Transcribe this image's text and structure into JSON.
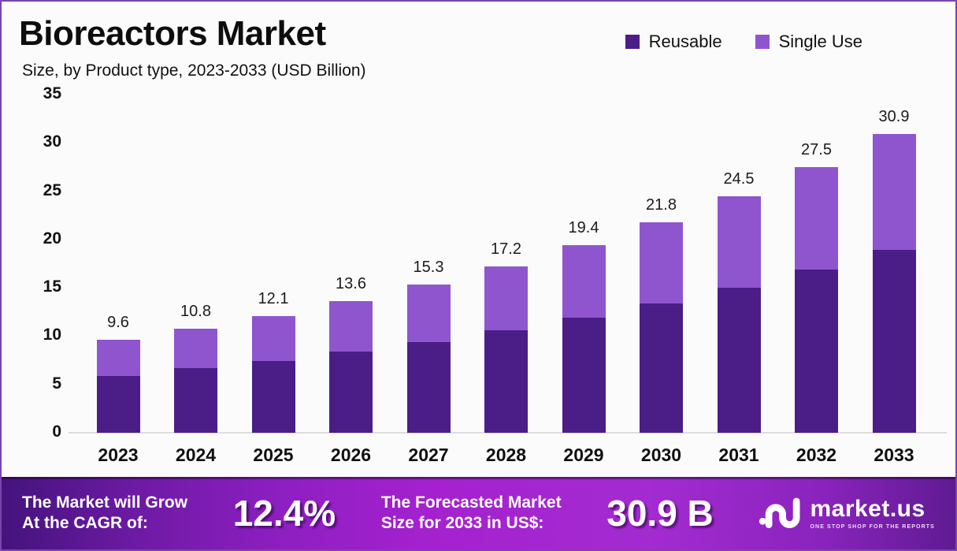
{
  "header": {
    "title": "Bioreactors Market",
    "subtitle": "Size, by Product type, 2023-2033 (USD Billion)"
  },
  "legend": [
    {
      "label": "Reusable",
      "color": "#4b1d87"
    },
    {
      "label": "Single Use",
      "color": "#8f55ce"
    }
  ],
  "chart_data": {
    "type": "bar",
    "stacked": true,
    "title": "Bioreactors Market Size, by Product type, 2023-2033 (USD Billion)",
    "categories": [
      "2023",
      "2024",
      "2025",
      "2026",
      "2027",
      "2028",
      "2029",
      "2030",
      "2031",
      "2032",
      "2033"
    ],
    "series": [
      {
        "name": "Reusable",
        "color": "#4b1d87",
        "values": [
          5.9,
          6.7,
          7.4,
          8.4,
          9.4,
          10.6,
          11.9,
          13.4,
          15.0,
          16.9,
          18.9
        ]
      },
      {
        "name": "Single Use",
        "color": "#8f55ce",
        "values": [
          3.7,
          4.1,
          4.7,
          5.2,
          5.9,
          6.6,
          7.5,
          8.4,
          9.5,
          10.6,
          12.0
        ]
      }
    ],
    "totals": [
      9.6,
      10.8,
      12.1,
      13.6,
      15.3,
      17.2,
      19.4,
      21.8,
      24.5,
      27.5,
      30.9
    ],
    "total_labels": [
      "9.6",
      "10.8",
      "12.1",
      "13.6",
      "15.3",
      "17.2",
      "19.4",
      "21.8",
      "24.5",
      "27.5",
      "30.9"
    ],
    "xlabel": "",
    "ylabel": "",
    "ylim": [
      0,
      35
    ],
    "yticks": [
      0,
      5,
      10,
      15,
      20,
      25,
      30,
      35
    ],
    "grid": false,
    "legend_position": "top-right"
  },
  "footer": {
    "growth_label_line1": "The Market will Grow",
    "growth_label_line2": "At the CAGR of:",
    "cagr_value": "12.4%",
    "forecast_label_line1": "The Forecasted Market",
    "forecast_label_line2": "Size for 2033 in US$:",
    "forecast_value": "30.9 B",
    "brand_name": "market.us",
    "brand_tagline": "ONE STOP SHOP FOR THE REPORTS"
  }
}
